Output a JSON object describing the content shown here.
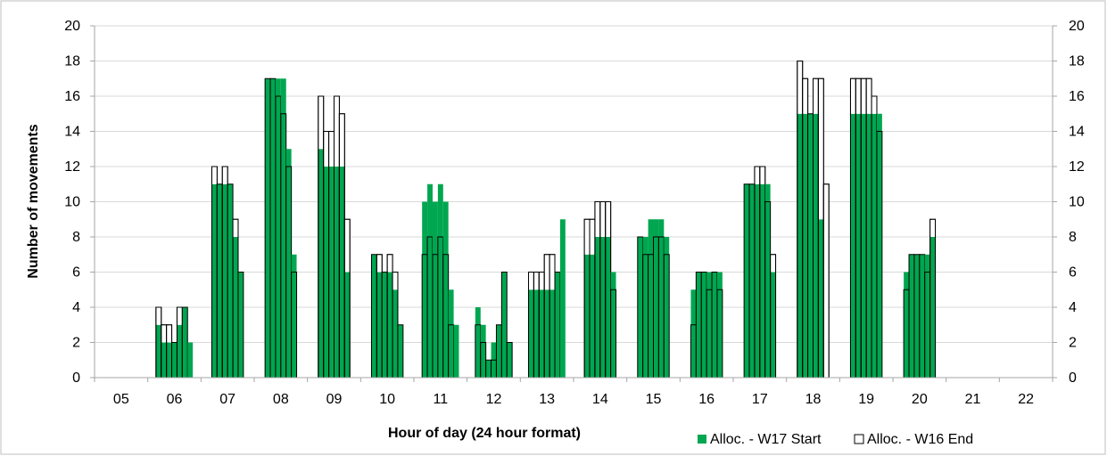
{
  "chart_data": {
    "type": "bar",
    "title": "",
    "xlabel": "Hour of day (24 hour format)",
    "ylabel": "Number of movements",
    "ylim": [
      0,
      20
    ],
    "yticks": [
      0,
      2,
      4,
      6,
      8,
      10,
      12,
      14,
      16,
      18,
      20
    ],
    "categories": [
      "05",
      "06",
      "07",
      "08",
      "09",
      "10",
      "11",
      "12",
      "13",
      "14",
      "15",
      "16",
      "17",
      "18",
      "19",
      "20",
      "21",
      "22"
    ],
    "grid": true,
    "legend_position": "bottom-right",
    "colors": {
      "w17": "#00a650",
      "w16": "#ffffff",
      "outline": "#000000",
      "grid": "#d9d9d9"
    },
    "series": [
      {
        "name": "Alloc. - W17 Start",
        "values": [
          [],
          [
            3,
            2,
            2,
            2,
            3,
            4,
            2
          ],
          [
            11,
            11,
            11,
            11,
            8,
            6
          ],
          [
            17,
            17,
            17,
            17,
            13,
            7
          ],
          [
            13,
            12,
            12,
            12,
            12,
            6
          ],
          [
            7,
            6,
            6,
            6,
            5,
            3
          ],
          [
            10,
            11,
            10,
            11,
            10,
            5,
            3
          ],
          [
            4,
            3,
            1,
            2,
            3,
            6,
            2
          ],
          [
            5,
            5,
            5,
            5,
            5,
            6,
            9
          ],
          [
            7,
            7,
            8,
            8,
            8,
            6
          ],
          [
            8,
            8,
            9,
            9,
            9,
            8
          ],
          [
            5,
            6,
            6,
            6,
            6,
            6
          ],
          [
            11,
            11,
            11,
            11,
            11,
            6
          ],
          [
            15,
            15,
            15,
            15,
            9
          ],
          [
            15,
            15,
            15,
            15,
            15,
            15
          ],
          [
            6,
            7,
            7,
            7,
            7,
            8
          ],
          [],
          []
        ]
      },
      {
        "name": "Alloc. - W16 End",
        "values": [
          [],
          [
            4,
            3,
            3,
            2,
            4,
            4
          ],
          [
            12,
            11,
            12,
            11,
            9,
            6
          ],
          [
            17,
            17,
            16,
            15,
            12,
            6
          ],
          [
            16,
            14,
            14,
            16,
            15,
            9
          ],
          [
            7,
            7,
            6,
            7,
            6,
            3
          ],
          [
            7,
            8,
            7,
            8,
            7,
            3
          ],
          [
            3,
            2,
            1,
            1,
            3,
            6,
            2
          ],
          [
            6,
            6,
            6,
            7,
            7,
            6
          ],
          [
            9,
            9,
            10,
            10,
            10,
            5
          ],
          [
            8,
            7,
            7,
            8,
            8,
            7
          ],
          [
            3,
            6,
            6,
            5,
            6,
            5
          ],
          [
            11,
            11,
            12,
            12,
            10,
            7
          ],
          [
            18,
            17,
            15,
            17,
            17,
            11
          ],
          [
            17,
            17,
            17,
            17,
            16,
            14
          ],
          [
            5,
            7,
            7,
            7,
            6,
            9
          ],
          [],
          []
        ]
      }
    ]
  }
}
